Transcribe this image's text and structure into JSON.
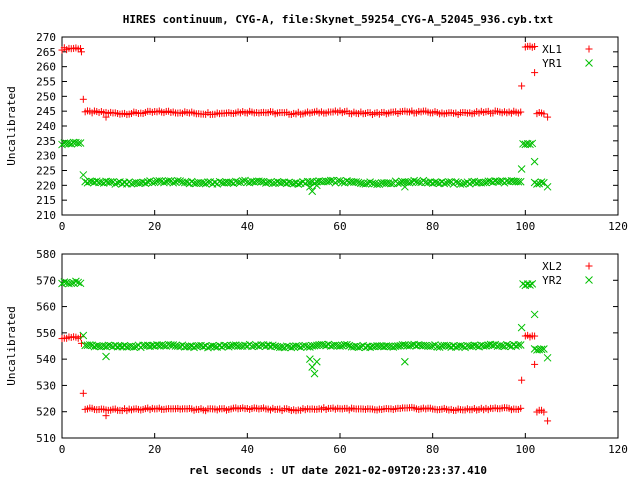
{
  "title": "HIRES continuum, CYG-A, file:Skynet_59254_CYG-A_52045_936.cyb.txt",
  "colors": {
    "red": "#ff0000",
    "green": "#00c000",
    "axis": "#000000"
  },
  "chart_data": [
    {
      "type": "scatter",
      "ylabel": "Uncalibrated",
      "xlabel": "",
      "xlim": [
        0,
        120
      ],
      "ylim": [
        210,
        270
      ],
      "xticks": [
        0,
        20,
        40,
        60,
        80,
        100,
        120
      ],
      "yticks": [
        210,
        215,
        220,
        225,
        230,
        235,
        240,
        245,
        250,
        255,
        260,
        265,
        270
      ],
      "legend_position": "top-right",
      "series": [
        {
          "name": "XL1",
          "marker": "plus",
          "color": "#ff0000",
          "segments": [
            {
              "x": [
                0,
                4
              ],
              "y": [
                266
              ]
            },
            {
              "x": [
                5,
                99
              ],
              "y": [
                244.5
              ]
            },
            {
              "x": [
                100,
                102
              ],
              "y": [
                267
              ]
            },
            {
              "x": [
                102.5,
                104
              ],
              "y": [
                244.5
              ]
            }
          ],
          "points": [
            {
              "x": 4.2,
              "y": 265
            },
            {
              "x": 4.6,
              "y": 249
            },
            {
              "x": 9.5,
              "y": 243
            },
            {
              "x": 99.2,
              "y": 253.5
            },
            {
              "x": 102,
              "y": 258
            },
            {
              "x": 104.8,
              "y": 243
            }
          ]
        },
        {
          "name": "YR1",
          "marker": "cross",
          "color": "#00c000",
          "segments": [
            {
              "x": [
                0,
                4
              ],
              "y": [
                234
              ]
            },
            {
              "x": [
                5,
                99
              ],
              "y": [
                221
              ]
            },
            {
              "x": [
                99.5,
                101.5
              ],
              "y": [
                234
              ]
            },
            {
              "x": [
                102,
                104
              ],
              "y": [
                221
              ]
            }
          ],
          "points": [
            {
              "x": 4.6,
              "y": 223.5
            },
            {
              "x": 53.5,
              "y": 219.5
            },
            {
              "x": 54,
              "y": 218
            },
            {
              "x": 55,
              "y": 220
            },
            {
              "x": 74,
              "y": 219.5
            },
            {
              "x": 99.2,
              "y": 225.5
            },
            {
              "x": 102,
              "y": 228
            },
            {
              "x": 104.8,
              "y": 219.5
            }
          ]
        }
      ]
    },
    {
      "type": "scatter",
      "ylabel": "Uncalibrated",
      "xlabel": "rel seconds : UT date 2021-02-09T20:23:37.410",
      "xlim": [
        0,
        120
      ],
      "ylim": [
        510,
        580
      ],
      "xticks": [
        0,
        20,
        40,
        60,
        80,
        100,
        120
      ],
      "yticks": [
        510,
        520,
        530,
        540,
        550,
        560,
        570,
        580
      ],
      "legend_position": "top-right",
      "series": [
        {
          "name": "XL2",
          "marker": "plus",
          "color": "#ff0000",
          "segments": [
            {
              "x": [
                0,
                4
              ],
              "y": [
                548
              ]
            },
            {
              "x": [
                5,
                99
              ],
              "y": [
                521
              ]
            },
            {
              "x": [
                100,
                102
              ],
              "y": [
                549
              ]
            },
            {
              "x": [
                102.5,
                104
              ],
              "y": [
                520.5
              ]
            }
          ],
          "points": [
            {
              "x": 4.2,
              "y": 546
            },
            {
              "x": 4.6,
              "y": 527
            },
            {
              "x": 9.5,
              "y": 518.5
            },
            {
              "x": 99.2,
              "y": 532
            },
            {
              "x": 102,
              "y": 538
            },
            {
              "x": 104.8,
              "y": 516.5
            }
          ]
        },
        {
          "name": "YR2",
          "marker": "cross",
          "color": "#00c000",
          "segments": [
            {
              "x": [
                0,
                4
              ],
              "y": [
                569
              ]
            },
            {
              "x": [
                5,
                99
              ],
              "y": [
                545
              ]
            },
            {
              "x": [
                99.5,
                101.5
              ],
              "y": [
                568.5
              ]
            },
            {
              "x": [
                102,
                104
              ],
              "y": [
                544
              ]
            }
          ],
          "points": [
            {
              "x": 4.6,
              "y": 549
            },
            {
              "x": 9.5,
              "y": 541
            },
            {
              "x": 53.5,
              "y": 540
            },
            {
              "x": 54,
              "y": 537
            },
            {
              "x": 54.5,
              "y": 534.5
            },
            {
              "x": 55,
              "y": 539
            },
            {
              "x": 74,
              "y": 539
            },
            {
              "x": 99.2,
              "y": 552
            },
            {
              "x": 102,
              "y": 557
            },
            {
              "x": 104.8,
              "y": 540.5
            }
          ]
        }
      ]
    }
  ]
}
